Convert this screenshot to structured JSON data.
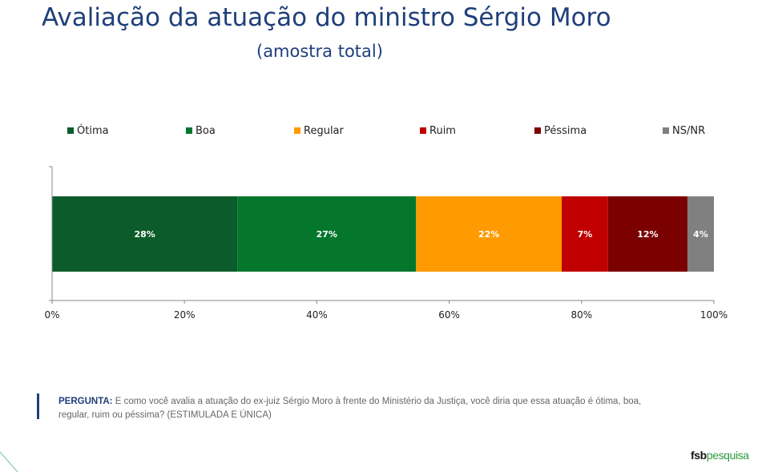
{
  "title": "Avaliação da atuação do ministro Sérgio Moro",
  "subtitle": "(amostra total)",
  "question": {
    "label": "PERGUNTA:",
    "text": "E como você avalia a atuação do ex-juiz Sérgio Moro à frente do Ministério da Justiça, você diria que essa atuação é ótima, boa, regular, ruim ou péssima? (ESTIMULADA E ÚNICA)"
  },
  "logo": {
    "part1": "fsb",
    "part2": "pesquisa"
  },
  "chart_data": {
    "type": "bar",
    "orientation": "horizontal",
    "stacked": true,
    "categories": [
      ""
    ],
    "series": [
      {
        "name": "Ótima",
        "values": [
          28
        ],
        "label": "28%",
        "color": "#0b5c2a"
      },
      {
        "name": "Boa",
        "values": [
          27
        ],
        "label": "27%",
        "color": "#04772d"
      },
      {
        "name": "Regular",
        "values": [
          22
        ],
        "label": "22%",
        "color": "#ff9a00"
      },
      {
        "name": "Ruim",
        "values": [
          7
        ],
        "label": "7%",
        "color": "#c00000"
      },
      {
        "name": "Péssima",
        "values": [
          12
        ],
        "label": "12%",
        "color": "#7b0000"
      },
      {
        "name": "NS/NR",
        "values": [
          4
        ],
        "label": "4%",
        "color": "#808080"
      }
    ],
    "x_ticks": [
      "0%",
      "20%",
      "40%",
      "60%",
      "80%",
      "100%"
    ],
    "xlim": [
      0,
      100
    ],
    "legend_position": "top",
    "grid": false
  }
}
